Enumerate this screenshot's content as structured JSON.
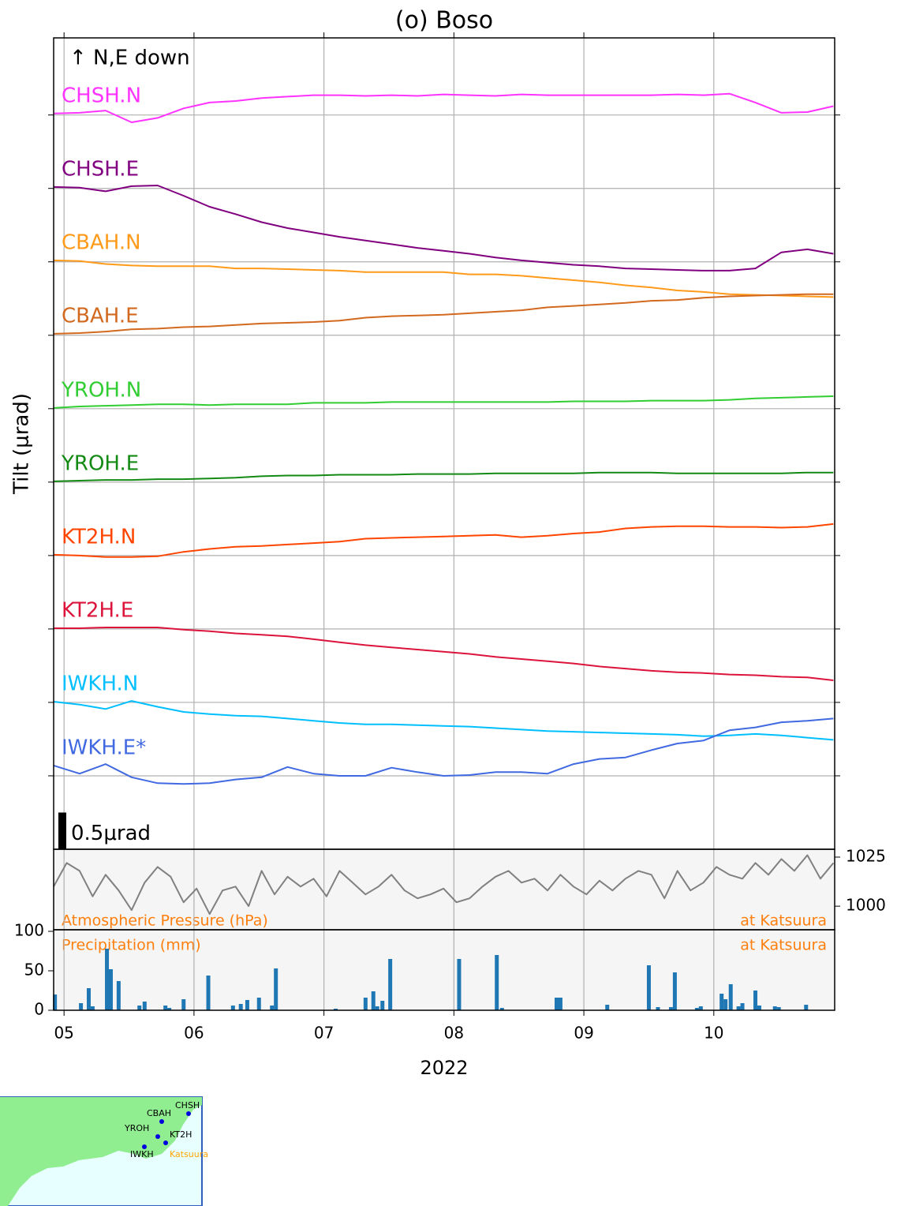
{
  "chart_data": [
    {
      "type": "line",
      "title": "(o) Boso",
      "ylabel": "Tilt (μrad)",
      "annotation": "↑ N,E down",
      "scale_bar": {
        "value": 0.5,
        "label": "0.5μrad"
      },
      "ylim": [
        0,
        11.05
      ],
      "yticks": [
        1,
        2,
        3,
        4,
        5,
        6,
        7,
        8,
        9,
        10
      ],
      "grid": true,
      "x": [
        4.92,
        5.12,
        5.32,
        5.52,
        5.72,
        5.92,
        6.12,
        6.32,
        6.52,
        6.72,
        6.92,
        7.12,
        7.32,
        7.52,
        7.72,
        7.92,
        8.12,
        8.32,
        8.52,
        8.72,
        8.92,
        9.12,
        9.32,
        9.52,
        9.72,
        9.92,
        10.12,
        10.32,
        10.52,
        10.72,
        10.92
      ],
      "series": [
        {
          "name": "CHSH.N",
          "color": "#ff33ff",
          "values": [
            10.02,
            10.03,
            10.06,
            9.9,
            9.96,
            10.09,
            10.17,
            10.19,
            10.23,
            10.25,
            10.27,
            10.27,
            10.26,
            10.27,
            10.26,
            10.28,
            10.27,
            10.26,
            10.28,
            10.27,
            10.27,
            10.27,
            10.27,
            10.27,
            10.28,
            10.27,
            10.29,
            10.17,
            10.03,
            10.04,
            10.12
          ]
        },
        {
          "name": "CHSH.E",
          "color": "#800080",
          "values": [
            9.02,
            9.01,
            8.96,
            9.03,
            9.04,
            8.9,
            8.75,
            8.65,
            8.54,
            8.46,
            8.4,
            8.34,
            8.29,
            8.24,
            8.19,
            8.15,
            8.11,
            8.06,
            8.02,
            7.99,
            7.96,
            7.94,
            7.91,
            7.9,
            7.89,
            7.88,
            7.88,
            7.91,
            8.13,
            8.17,
            8.11
          ]
        },
        {
          "name": "CBAH.N",
          "color": "#ff9a1a",
          "values": [
            8.02,
            8.01,
            7.97,
            7.95,
            7.94,
            7.94,
            7.94,
            7.91,
            7.91,
            7.9,
            7.89,
            7.88,
            7.86,
            7.86,
            7.86,
            7.86,
            7.83,
            7.83,
            7.81,
            7.78,
            7.75,
            7.72,
            7.68,
            7.65,
            7.61,
            7.59,
            7.56,
            7.55,
            7.54,
            7.53,
            7.52
          ]
        },
        {
          "name": "CBAH.E",
          "color": "#d2691e",
          "values": [
            7.02,
            7.03,
            7.05,
            7.08,
            7.09,
            7.11,
            7.12,
            7.14,
            7.16,
            7.17,
            7.18,
            7.2,
            7.24,
            7.26,
            7.27,
            7.28,
            7.3,
            7.32,
            7.34,
            7.38,
            7.4,
            7.42,
            7.44,
            7.47,
            7.48,
            7.51,
            7.53,
            7.54,
            7.55,
            7.56,
            7.56
          ]
        },
        {
          "name": "YROH.N",
          "color": "#32cd32",
          "values": [
            6.01,
            6.03,
            6.04,
            6.05,
            6.06,
            6.06,
            6.05,
            6.06,
            6.06,
            6.06,
            6.08,
            6.08,
            6.08,
            6.09,
            6.09,
            6.09,
            6.09,
            6.09,
            6.09,
            6.09,
            6.1,
            6.1,
            6.1,
            6.11,
            6.11,
            6.11,
            6.12,
            6.14,
            6.15,
            6.16,
            6.17
          ]
        },
        {
          "name": "YROH.E",
          "color": "#138a13",
          "values": [
            5.01,
            5.02,
            5.03,
            5.03,
            5.04,
            5.04,
            5.05,
            5.06,
            5.08,
            5.09,
            5.09,
            5.1,
            5.1,
            5.1,
            5.11,
            5.11,
            5.11,
            5.12,
            5.12,
            5.12,
            5.12,
            5.13,
            5.13,
            5.13,
            5.12,
            5.12,
            5.12,
            5.12,
            5.12,
            5.13,
            5.13
          ]
        },
        {
          "name": "KT2H.N",
          "color": "#ff4500",
          "values": [
            4.01,
            4.0,
            3.98,
            3.98,
            3.99,
            4.05,
            4.09,
            4.12,
            4.13,
            4.15,
            4.17,
            4.19,
            4.23,
            4.24,
            4.25,
            4.26,
            4.27,
            4.28,
            4.25,
            4.27,
            4.3,
            4.32,
            4.37,
            4.39,
            4.4,
            4.4,
            4.39,
            4.39,
            4.38,
            4.39,
            4.43
          ]
        },
        {
          "name": "KT2H.E",
          "color": "#dc143c",
          "values": [
            3.01,
            3.01,
            3.02,
            3.02,
            3.02,
            2.99,
            2.97,
            2.94,
            2.92,
            2.9,
            2.86,
            2.82,
            2.78,
            2.75,
            2.72,
            2.69,
            2.66,
            2.62,
            2.59,
            2.56,
            2.53,
            2.49,
            2.46,
            2.43,
            2.41,
            2.4,
            2.38,
            2.37,
            2.35,
            2.34,
            2.3
          ]
        },
        {
          "name": "IWKH.N",
          "color": "#00bfff",
          "values": [
            2.01,
            1.97,
            1.91,
            2.02,
            1.94,
            1.87,
            1.84,
            1.82,
            1.81,
            1.78,
            1.75,
            1.72,
            1.7,
            1.7,
            1.69,
            1.68,
            1.67,
            1.65,
            1.63,
            1.61,
            1.6,
            1.59,
            1.58,
            1.57,
            1.56,
            1.54,
            1.55,
            1.57,
            1.55,
            1.52,
            1.49
          ]
        },
        {
          "name": "IWKH.E*",
          "color": "#4169e1",
          "values": [
            1.14,
            1.03,
            1.16,
            0.98,
            0.9,
            0.89,
            0.9,
            0.95,
            0.98,
            1.12,
            1.03,
            1.0,
            1.0,
            1.11,
            1.05,
            1.0,
            1.01,
            1.05,
            1.05,
            1.03,
            1.16,
            1.23,
            1.25,
            1.35,
            1.44,
            1.48,
            1.62,
            1.66,
            1.73,
            1.75,
            1.78
          ]
        }
      ]
    },
    {
      "type": "line",
      "annotation": "Atmospheric Pressure (hPa)",
      "location": "at Katsuura",
      "color": "#808080",
      "ylim": [
        988,
        1029
      ],
      "yticks": [
        1000,
        1025
      ],
      "x": [
        4.92,
        5.02,
        5.12,
        5.22,
        5.32,
        5.42,
        5.52,
        5.62,
        5.72,
        5.82,
        5.92,
        6.02,
        6.12,
        6.22,
        6.32,
        6.42,
        6.52,
        6.62,
        6.72,
        6.82,
        6.92,
        7.02,
        7.12,
        7.22,
        7.32,
        7.42,
        7.52,
        7.62,
        7.72,
        7.82,
        7.92,
        8.02,
        8.12,
        8.22,
        8.32,
        8.42,
        8.52,
        8.62,
        8.72,
        8.82,
        8.92,
        9.02,
        9.12,
        9.22,
        9.32,
        9.42,
        9.52,
        9.62,
        9.72,
        9.82,
        9.92,
        10.02,
        10.12,
        10.22,
        10.32,
        10.42,
        10.52,
        10.62,
        10.72,
        10.82,
        10.92
      ],
      "values": [
        1010,
        1022,
        1018,
        1005,
        1016,
        1008,
        998,
        1012,
        1020,
        1015,
        1002,
        1009,
        996,
        1008,
        1010,
        1000,
        1018,
        1006,
        1015,
        1010,
        1014,
        1005,
        1018,
        1012,
        1006,
        1010,
        1016,
        1008,
        1004,
        1006,
        1009,
        1002,
        1004,
        1010,
        1015,
        1018,
        1012,
        1014,
        1008,
        1016,
        1010,
        1006,
        1013,
        1008,
        1014,
        1018,
        1016,
        1004,
        1018,
        1008,
        1012,
        1020,
        1016,
        1014,
        1022,
        1016,
        1024,
        1018,
        1026,
        1014,
        1022
      ]
    },
    {
      "type": "bar",
      "annotation": "Precipitation (mm)",
      "location": "at Katsuura",
      "color": "#1f77b4",
      "ylim": [
        0,
        102
      ],
      "yticks": [
        0,
        50,
        100
      ],
      "xlim": [
        4.92,
        10.93
      ],
      "xticks": [
        {
          "value": 5,
          "label": "05"
        },
        {
          "value": 6,
          "label": "06"
        },
        {
          "value": 7,
          "label": "07"
        },
        {
          "value": 8,
          "label": "08"
        },
        {
          "value": 9,
          "label": "09"
        },
        {
          "value": 10,
          "label": "10"
        }
      ],
      "xlabel": "2022",
      "x": [
        4.93,
        5.13,
        5.19,
        5.22,
        5.33,
        5.36,
        5.42,
        5.58,
        5.62,
        5.78,
        5.81,
        5.92,
        6.11,
        6.3,
        6.36,
        6.41,
        6.5,
        6.6,
        6.63,
        7.09,
        7.32,
        7.38,
        7.41,
        7.45,
        7.51,
        8.04,
        8.33,
        8.37,
        8.79,
        8.82,
        9.18,
        9.5,
        9.57,
        9.67,
        9.7,
        9.87,
        9.9,
        10.06,
        10.09,
        10.13,
        10.19,
        10.22,
        10.32,
        10.35,
        10.47,
        10.5,
        10.71
      ],
      "values": [
        20,
        9,
        28,
        5,
        78,
        52,
        37,
        6,
        11,
        6,
        3,
        14,
        44,
        6,
        8,
        13,
        16,
        6,
        53,
        2,
        16,
        24,
        5,
        12,
        65,
        65,
        70,
        3,
        16,
        16,
        7,
        57,
        4,
        4,
        48,
        3,
        5,
        21,
        14,
        33,
        5,
        9,
        25,
        6,
        5,
        4,
        7
      ]
    }
  ],
  "inset_map": {
    "stations": [
      "CHSH",
      "CBAH",
      "YROH",
      "KT2H",
      "IWKH"
    ],
    "reference": "Katsuura"
  }
}
